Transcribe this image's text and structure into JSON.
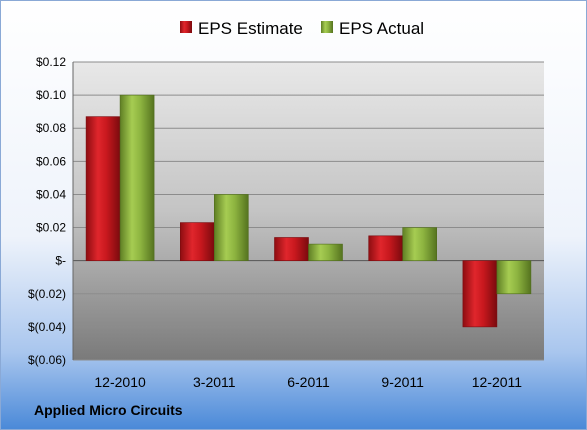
{
  "chart_data": {
    "type": "bar",
    "title": "Applied Micro Circuits",
    "categories": [
      "12-2010",
      "3-2011",
      "6-2011",
      "9-2011",
      "12-2011"
    ],
    "series": [
      {
        "name": "EPS Estimate",
        "values": [
          0.087,
          0.023,
          0.014,
          0.015,
          -0.04
        ]
      },
      {
        "name": "EPS Actual",
        "values": [
          0.1,
          0.04,
          0.01,
          0.02,
          -0.02
        ]
      }
    ],
    "ylim": [
      -0.06,
      0.12
    ],
    "yticks": [
      0.12,
      0.1,
      0.08,
      0.06,
      0.04,
      0.02,
      0,
      -0.02,
      -0.04,
      -0.06
    ],
    "ytick_labels": [
      "$0.12",
      "$0.10",
      "$0.08",
      "$0.06",
      "$0.04",
      "$0.02",
      "$-",
      "$(0.02)",
      "$(0.04)",
      "$(0.06)"
    ],
    "legend_position": "top",
    "grid": true,
    "colors": {
      "estimate": "#c0151b",
      "actual": "#8db440",
      "plot_top": "#e6e6e6",
      "plot_bottom": "#7d7d7d",
      "frame_bottom": "#4a89d8"
    }
  }
}
